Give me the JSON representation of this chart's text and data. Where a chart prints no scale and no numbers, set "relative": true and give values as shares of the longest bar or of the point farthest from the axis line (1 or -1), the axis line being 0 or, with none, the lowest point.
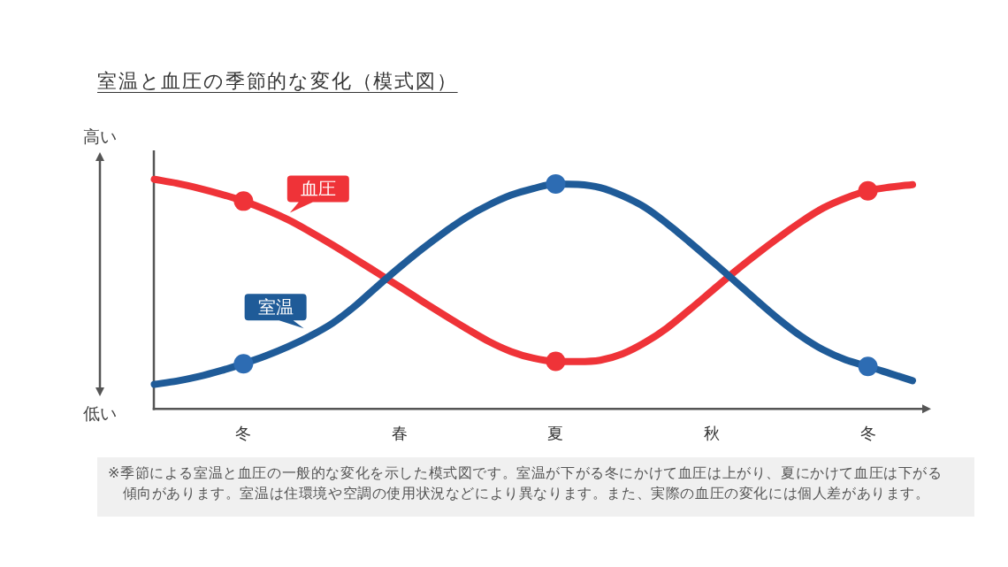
{
  "chart_data": {
    "type": "line",
    "title": "室温と血圧の季節的な変化（模式図）",
    "relative": true,
    "categories": [
      null,
      null,
      null,
      null,
      "冬",
      null,
      null,
      null,
      null,
      null,
      null,
      "春",
      null,
      null,
      null,
      null,
      null,
      null,
      "夏",
      null,
      null,
      null,
      null,
      null,
      null,
      "秋",
      null,
      null,
      null,
      null,
      null,
      null,
      "冬",
      null,
      null
    ],
    "series": [
      {
        "name": "血圧",
        "color": "#ef3338",
        "values": [
          1,
          0.983,
          0.961,
          0.935,
          0.905,
          0.868,
          0.824,
          0.771,
          0.714,
          0.654,
          0.593,
          0.532,
          0.47,
          0.409,
          0.35,
          0.294,
          0.25,
          0.221,
          0.207,
          0.206,
          0.212,
          0.24,
          0.289,
          0.353,
          0.432,
          0.514,
          0.596,
          0.673,
          0.746,
          0.815,
          0.875,
          0.918,
          0.95,
          0.966,
          0.977
        ]
      },
      {
        "type": "scatter",
        "color": "#ef3338",
        "values": [
          null,
          null,
          null,
          null,
          0.905,
          null,
          null,
          null,
          null,
          null,
          null,
          null,
          null,
          null,
          null,
          null,
          null,
          null,
          0.207,
          null,
          null,
          null,
          null,
          null,
          null,
          null,
          null,
          null,
          null,
          null,
          null,
          null,
          0.95,
          null,
          null
        ]
      },
      {
        "name": "室温",
        "color": "#1f5b98",
        "values": [
          0.107,
          0.121,
          0.141,
          0.167,
          0.197,
          0.231,
          0.271,
          0.318,
          0.374,
          0.448,
          0.534,
          0.617,
          0.696,
          0.769,
          0.835,
          0.888,
          0.931,
          0.96,
          0.98,
          0.978,
          0.964,
          0.928,
          0.878,
          0.807,
          0.727,
          0.644,
          0.56,
          0.474,
          0.391,
          0.317,
          0.257,
          0.214,
          0.185,
          0.154,
          0.123
        ]
      },
      {
        "type": "scatter",
        "color": "#2d6cb3",
        "values": [
          null,
          null,
          null,
          null,
          0.197,
          null,
          null,
          null,
          null,
          null,
          null,
          null,
          null,
          null,
          null,
          null,
          null,
          null,
          0.98,
          null,
          null,
          null,
          null,
          null,
          null,
          null,
          null,
          null,
          null,
          null,
          null,
          null,
          0.185,
          null,
          null
        ]
      }
    ],
    "annotations": [
      "高い",
      "低い",
      "※季節による室温と血圧の一般的な変化を示した模式図です。室温が下がる冬にかけて血圧は上がり、夏にかけて血圧は下がる傾向があります。室温は住環境や空調の使用状況などにより異なります。また、実際の血圧の変化には個人差があります。"
    ]
  }
}
